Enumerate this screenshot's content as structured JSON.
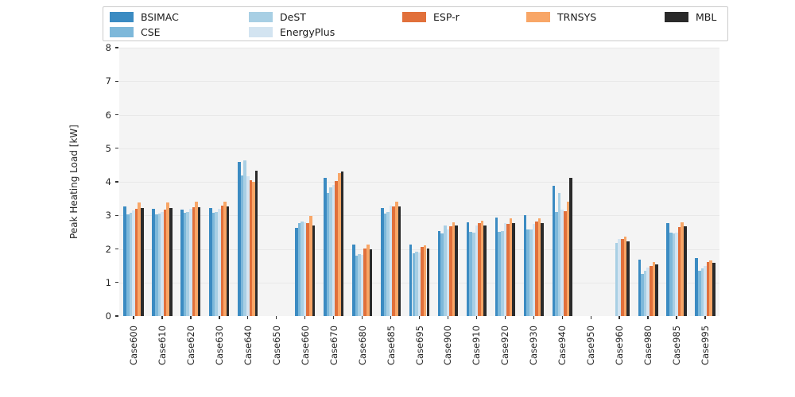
{
  "figure": {
    "plot_background": "#f4f4f4",
    "grid_color": "#e8e8e8",
    "tick_color": "#333333"
  },
  "legend": {
    "items": [
      {
        "label": "BSIMAC",
        "color": "#3b8bc2"
      },
      {
        "label": "CSE",
        "color": "#7db8da"
      },
      {
        "label": "DeST",
        "color": "#a8cfe4"
      },
      {
        "label": "EnergyPlus",
        "color": "#d3e4f1"
      },
      {
        "label": "ESP-r",
        "color": "#e1703b"
      },
      {
        "label": "TRNSYS",
        "color": "#f8a667"
      },
      {
        "label": "MBL",
        "color": "#2a2a2a"
      }
    ]
  },
  "chart_data": {
    "type": "bar",
    "title": "",
    "xlabel": "",
    "ylabel": "Peak Heating Load [kW]",
    "ylim": [
      0,
      8
    ],
    "yticks": [
      0,
      1,
      2,
      3,
      4,
      5,
      6,
      7,
      8
    ],
    "grid": "horizontal",
    "legend_position": "top",
    "categories": [
      "Case600",
      "Case610",
      "Case620",
      "Case630",
      "Case640",
      "Case650",
      "Case660",
      "Case670",
      "Case680",
      "Case685",
      "Case695",
      "Case900",
      "Case910",
      "Case920",
      "Case930",
      "Case940",
      "Case950",
      "Case960",
      "Case980",
      "Case985",
      "Case995"
    ],
    "series": [
      {
        "name": "BSIMAC",
        "color": "#3b8bc2",
        "values": [
          3.26,
          3.2,
          3.18,
          3.23,
          4.6,
          null,
          2.63,
          4.12,
          2.14,
          3.21,
          2.14,
          2.53,
          2.79,
          2.94,
          3.0,
          3.88,
          null,
          null,
          1.69,
          2.77,
          1.73
        ]
      },
      {
        "name": "CSE",
        "color": "#7db8da",
        "values": [
          3.04,
          3.03,
          3.08,
          3.08,
          4.19,
          null,
          2.78,
          3.68,
          1.8,
          3.06,
          1.86,
          2.46,
          2.5,
          2.52,
          2.58,
          3.1,
          null,
          null,
          1.26,
          2.48,
          1.36
        ]
      },
      {
        "name": "DeST",
        "color": "#a8cfe4",
        "values": [
          3.08,
          3.06,
          3.11,
          3.1,
          4.64,
          null,
          2.82,
          3.84,
          1.84,
          3.11,
          1.91,
          2.7,
          2.48,
          2.54,
          2.58,
          3.67,
          null,
          2.18,
          1.36,
          2.45,
          1.42
        ]
      },
      {
        "name": "EnergyPlus",
        "color": "#d3e4f1",
        "values": [
          3.14,
          3.11,
          3.19,
          3.2,
          4.17,
          null,
          2.8,
          3.9,
          1.82,
          3.28,
          1.89,
          2.58,
          2.69,
          2.76,
          2.74,
          3.17,
          null,
          2.3,
          1.44,
          2.48,
          1.49
        ]
      },
      {
        "name": "ESP-r",
        "color": "#e1703b",
        "values": [
          3.2,
          3.18,
          3.24,
          3.29,
          4.05,
          null,
          2.76,
          4.02,
          2.02,
          3.27,
          2.05,
          2.68,
          2.76,
          2.74,
          2.81,
          3.13,
          null,
          2.29,
          1.5,
          2.64,
          1.6
        ]
      },
      {
        "name": "TRNSYS",
        "color": "#f8a667",
        "values": [
          3.38,
          3.38,
          3.41,
          3.4,
          4.01,
          null,
          2.98,
          4.25,
          2.14,
          3.41,
          2.1,
          2.8,
          2.84,
          2.9,
          2.92,
          3.41,
          null,
          2.36,
          1.6,
          2.79,
          1.66
        ]
      },
      {
        "name": "MBL",
        "color": "#2a2a2a",
        "values": [
          3.23,
          3.23,
          3.24,
          3.26,
          4.32,
          null,
          2.69,
          4.31,
          2.0,
          3.27,
          2.02,
          2.7,
          2.69,
          2.76,
          2.76,
          4.13,
          null,
          2.22,
          1.55,
          2.68,
          1.58
        ]
      }
    ]
  }
}
